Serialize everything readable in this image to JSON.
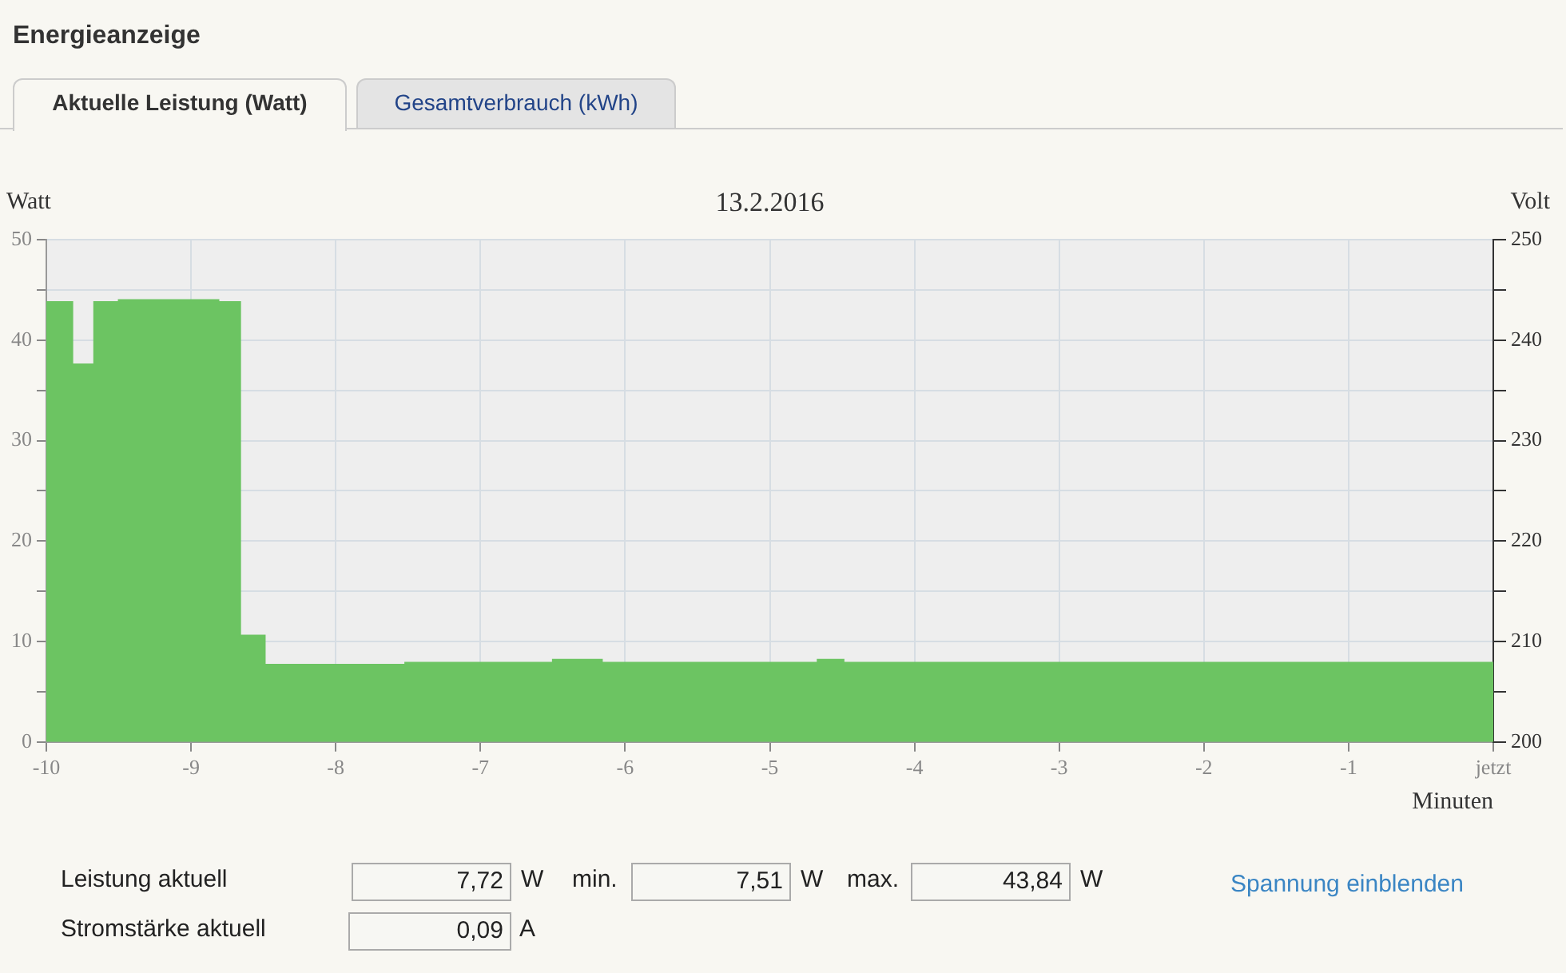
{
  "chart_data": {
    "type": "area",
    "title": "Energieanzeige",
    "subtitle": "13.2.2016",
    "xlabel": "Minuten",
    "ylabel": "Watt",
    "y2label": "Volt",
    "annotations": [
      "Aktuelle Leistung (Watt)",
      "Gesamtverbrauch (kWh)",
      "Leistung aktuell",
      "7,72",
      "W",
      "min.",
      "7,51",
      "W",
      "max.",
      "43,84",
      "W",
      "Spannung einblenden",
      "Stromstärke aktuell",
      "0,09",
      "A"
    ],
    "x": [
      -10,
      -9.82,
      -9.82,
      -9.67,
      -9.67,
      -9.5,
      -9.5,
      -8.81,
      -8.81,
      -8.66,
      -8.66,
      -8.49,
      -8.49,
      -7.52,
      -7.52,
      -6.5,
      -6.5,
      -6.16,
      -6.16,
      -4.67,
      -4.67,
      -4.49,
      -4.49,
      0
    ],
    "series": [
      {
        "color": "#6cc462",
        "values": [
          43.8,
          43.8,
          37.6,
          37.6,
          43.8,
          43.8,
          44.0,
          44.0,
          43.8,
          43.8,
          10.6,
          10.6,
          7.7,
          7.7,
          7.9,
          7.9,
          8.2,
          8.2,
          7.9,
          7.9,
          8.2,
          8.2,
          7.9,
          7.9
        ]
      }
    ],
    "xlim": [
      -10,
      0
    ],
    "xticks": [
      -10,
      -9,
      -8,
      -7,
      -6,
      -5,
      -4,
      -3,
      -2,
      -1,
      {
        "value": 0,
        "label": "jetzt"
      }
    ],
    "ylim": [
      0,
      50
    ],
    "yticks": [
      0,
      {
        "value": 5,
        "label": null
      },
      10,
      {
        "value": 15,
        "label": null
      },
      20,
      {
        "value": 25,
        "label": null
      },
      30,
      {
        "value": 35,
        "label": null
      },
      40,
      {
        "value": 45,
        "label": null
      },
      50
    ],
    "y2lim": [
      200,
      250
    ],
    "y2ticks": [
      200,
      {
        "value": 205,
        "label": null
      },
      210,
      {
        "value": 215,
        "label": null
      },
      220,
      {
        "value": 225,
        "label": null
      },
      230,
      {
        "value": 235,
        "label": null
      },
      240,
      {
        "value": 245,
        "label": null
      },
      250
    ],
    "grid": true,
    "legend": false
  }
}
